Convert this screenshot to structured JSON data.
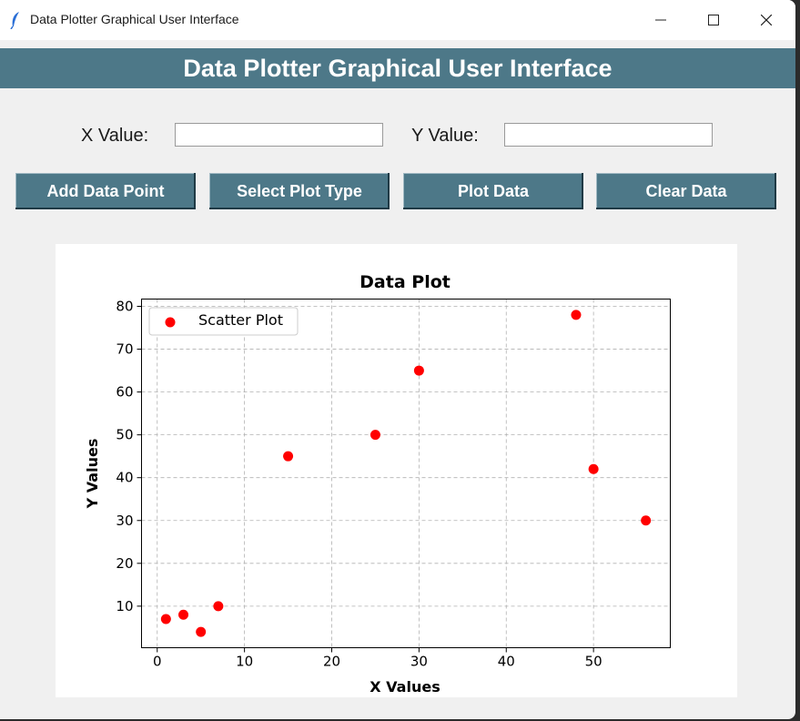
{
  "window": {
    "title": "Data Plotter Graphical User Interface"
  },
  "header": {
    "title": "Data Plotter Graphical User Interface"
  },
  "form": {
    "x_label": "X Value:",
    "x_value": "",
    "y_label": "Y Value:",
    "y_value": ""
  },
  "buttons": {
    "add": "Add Data Point",
    "select": "Select Plot Type",
    "plot": "Plot Data",
    "clear": "Clear Data"
  },
  "colors": {
    "accent": "#4d7888",
    "point": "#ff0000"
  },
  "chart_data": {
    "type": "scatter",
    "title": "Data Plot",
    "xlabel": "X Values",
    "ylabel": "Y Values",
    "series": [
      {
        "name": "Scatter Plot",
        "x": [
          1,
          3,
          5,
          7,
          15,
          25,
          30,
          48,
          50,
          56
        ],
        "y": [
          7,
          8,
          4,
          10,
          45,
          50,
          65,
          78,
          42,
          30
        ]
      }
    ],
    "xlim": [
      -1.8,
      58.8
    ],
    "ylim": [
      0.3,
      81.7
    ],
    "xticks": [
      0,
      10,
      20,
      30,
      40,
      50
    ],
    "yticks": [
      10,
      20,
      30,
      40,
      50,
      60,
      70,
      80
    ],
    "grid": true,
    "legend": "top-left"
  }
}
